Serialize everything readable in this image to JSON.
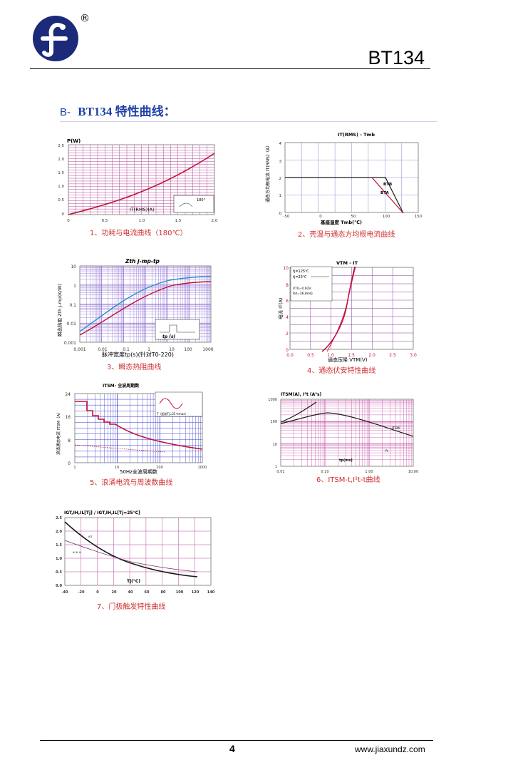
{
  "header": {
    "registered_mark": "®",
    "model": "BT134"
  },
  "section": {
    "letter": "B-",
    "title": "BT134 特性曲线："
  },
  "charts": {
    "c1": {
      "ylabel": "P(W)",
      "xlabel": "IT(RMS)(A)",
      "yticks": [
        "2.5",
        "2.0",
        "1.5",
        "1.0",
        "0.5",
        "0"
      ],
      "xticks": [
        "0",
        "0.5",
        "1.0",
        "1.5",
        "2.0"
      ],
      "caption": "1、功耗与电流曲线（180℃）",
      "inset": "180°"
    },
    "c2": {
      "title": "IT(RMS) - Tmb",
      "ylabel": "通态方均根电流 IT(RMS)（A）",
      "xlabel": "基座温度 Tmb(℃)",
      "yticks": [
        "4",
        "3",
        "2",
        "1",
        "0"
      ],
      "xticks": [
        "-50",
        "0",
        "50",
        "100",
        "150"
      ],
      "labels": [
        "BTB",
        "BTA"
      ],
      "caption": "2、壳温与通态方均根电流曲线"
    },
    "c3": {
      "title": "Zth j-mp-tp",
      "ylabel": "瞬态热阻 Zth j-mp(K/W)",
      "xlabel": "脉冲宽度tp(s)(针对T0-220)",
      "yticks": [
        "10",
        "1",
        "0.1",
        "0.01",
        "0.001"
      ],
      "xticks": [
        "0.001",
        "0.01",
        "0.1",
        "1",
        "10",
        "100",
        "1000"
      ],
      "caption": "3、瞬态热阻曲线",
      "label": "tp (s)"
    },
    "c4": {
      "title": "VTM - IT",
      "ylabel": "电流 IT(A)",
      "xlabel": "通态压降 VTM(V)",
      "yticks": [
        "10",
        "8",
        "6",
        "4",
        "2",
        "0"
      ],
      "xticks": [
        "0.0",
        "0.5",
        "1.0",
        "1.5",
        "2.0",
        "2.5",
        "3.0"
      ],
      "legend": [
        "tj=125℃",
        "tj=25℃"
      ],
      "notes": [
        "VT0=0.92V",
        "Rd=36.8mΩ"
      ],
      "caption": "4、通态伏安特性曲线"
    },
    "c5": {
      "title": "ITSM- 全波周期数",
      "ylabel": "浪涌通态电流 ITSM（A）",
      "xlabel": "50Hz全波周期数",
      "yticks": [
        "24",
        "16",
        "8",
        "0"
      ],
      "xticks": [
        "1",
        "10",
        "100",
        "1000"
      ],
      "inset": "T（起始Tj=25℃max）",
      "caption": "5、浪涌电流与周波数曲线"
    },
    "c6": {
      "title": "ITSM(A), I²t (A²s)",
      "xlabel": "tp(ms)",
      "yticks": [
        "1000",
        "100",
        "10",
        "1"
      ],
      "xticks": [
        "0.01",
        "0.10",
        "1.00",
        "10.00"
      ],
      "labels": [
        "ITSM",
        "I²t"
      ],
      "caption": "6、ITSM-t,I²t-t曲线"
    },
    "c7": {
      "title": "IGT,IH,IL[Tj] / IGT,IH,IL[Tj=25°C]",
      "xlabel": "Tj(°C)",
      "yticks": [
        "2.5",
        "2.0",
        "1.5",
        "1.0",
        "0.5",
        "0.0"
      ],
      "xticks": [
        "-40",
        "-20",
        "0",
        "20",
        "40",
        "60",
        "80",
        "100",
        "120",
        "140"
      ],
      "labels": [
        "IGT",
        "IH & IL"
      ],
      "caption": "7、门极触发特性曲线"
    }
  },
  "footer": {
    "page": "4",
    "url": "www.jiaxundz.com"
  }
}
